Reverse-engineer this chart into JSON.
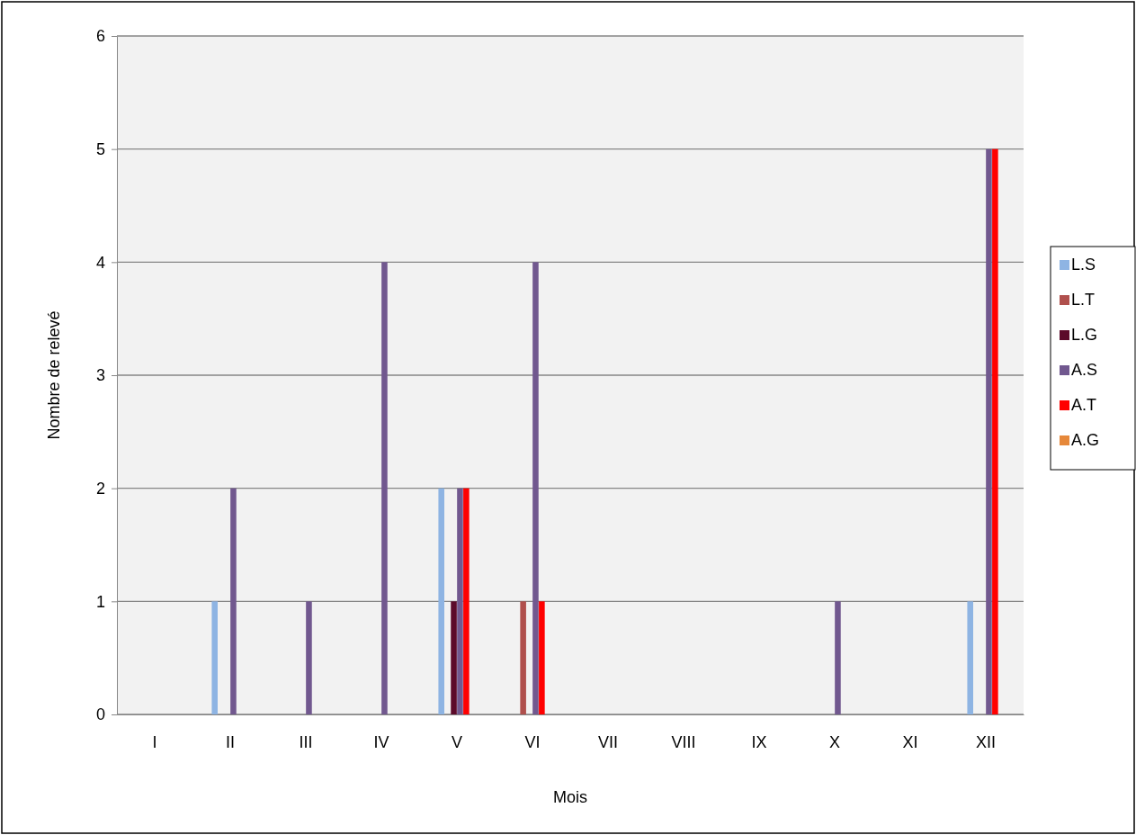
{
  "chart_data": {
    "type": "bar",
    "xlabel": "Mois",
    "ylabel": "Nombre de relevé",
    "categories": [
      "I",
      "II",
      "III",
      "IV",
      "V",
      "VI",
      "VII",
      "VIII",
      "IX",
      "X",
      "XI",
      "XII"
    ],
    "series": [
      {
        "name": "L.S",
        "color": "#8eb4e3",
        "values": [
          0,
          1,
          0,
          0,
          2,
          0,
          0,
          0,
          0,
          0,
          0,
          1
        ]
      },
      {
        "name": "L.T",
        "color": "#b0504d",
        "values": [
          0,
          0,
          0,
          0,
          0,
          1,
          0,
          0,
          0,
          0,
          0,
          0
        ]
      },
      {
        "name": "L.G",
        "color": "#5c0a2a",
        "values": [
          0,
          0,
          0,
          0,
          1,
          0,
          0,
          0,
          0,
          0,
          0,
          0
        ]
      },
      {
        "name": "A.S",
        "color": "#71588f",
        "values": [
          0,
          2,
          1,
          4,
          2,
          4,
          0,
          0,
          0,
          1,
          0,
          5
        ]
      },
      {
        "name": "A.T",
        "color": "#ff0000",
        "values": [
          0,
          0,
          0,
          0,
          2,
          1,
          0,
          0,
          0,
          0,
          0,
          5
        ]
      },
      {
        "name": "A.G",
        "color": "#e6883a",
        "values": [
          0,
          0,
          0,
          0,
          0,
          0,
          0,
          0,
          0,
          0,
          0,
          0
        ]
      }
    ],
    "ylim": [
      0,
      6
    ],
    "yticks": [
      0,
      1,
      2,
      3,
      4,
      5,
      6
    ],
    "grid": "y",
    "legend": "right"
  }
}
